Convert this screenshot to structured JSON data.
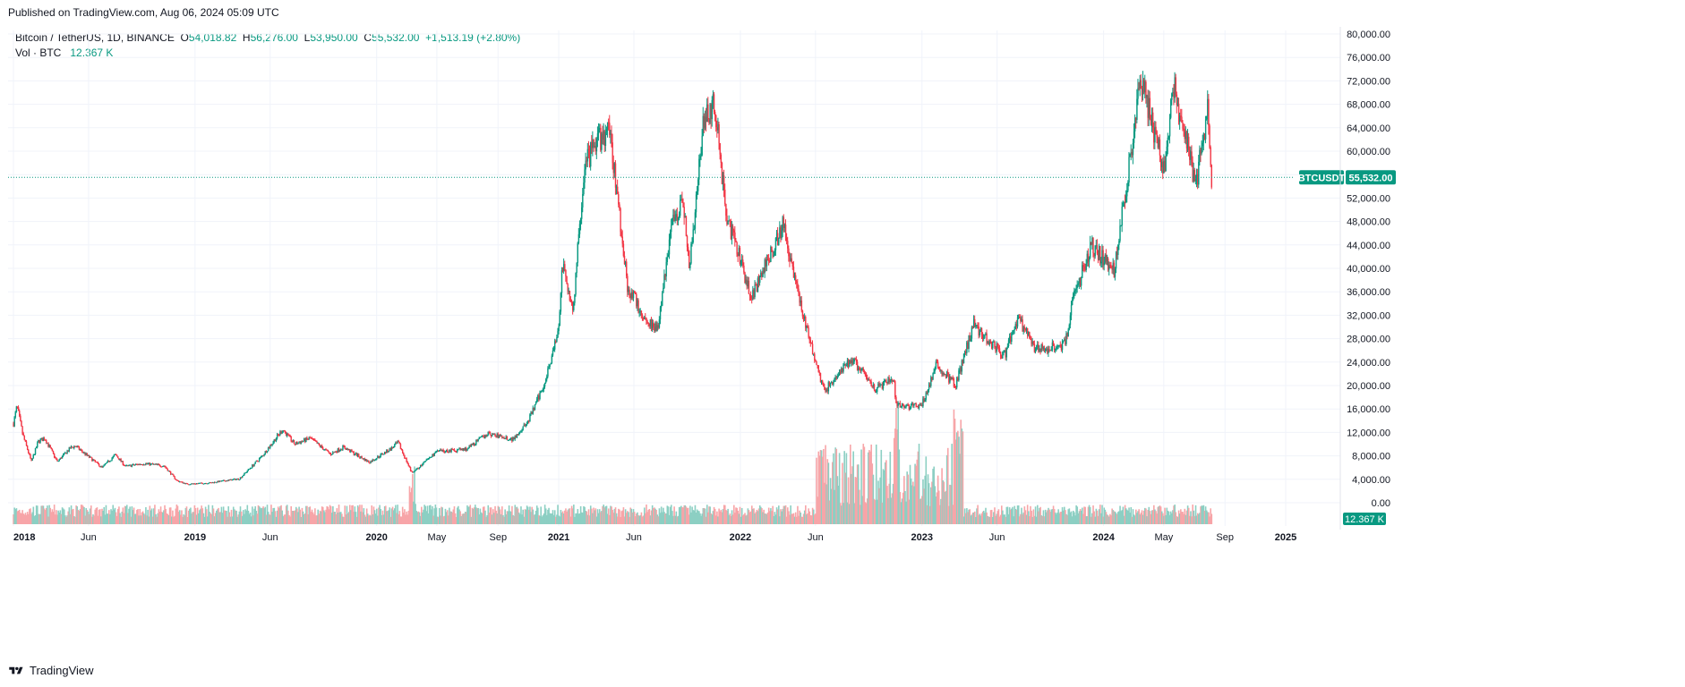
{
  "published": "Published on TradingView.com, Aug 06, 2024 05:09 UTC",
  "legend": {
    "symbol": "Bitcoin / TetherUS, 1D, BINANCE",
    "o_label": "O",
    "o": "54,018.82",
    "h_label": "H",
    "h": "56,276.00",
    "l_label": "L",
    "l": "53,950.00",
    "c_label": "C",
    "c": "55,532.00",
    "change": "+1,513.19 (+2.80%)",
    "vol_label": "Vol · BTC",
    "vol": "12.367 K"
  },
  "price_badge": {
    "symbol": "BTCUSDT",
    "price": "55,532.00"
  },
  "volume_badge": "12.367 K",
  "footer": {
    "brand": "TradingView"
  },
  "colors": {
    "up": "#089981",
    "down": "#f23645",
    "grid": "#f0f3fa",
    "text": "#131722",
    "badge": "#089981",
    "vol_up": "#8ccfc3",
    "vol_down": "#f7a5a8"
  },
  "chart_data": {
    "type": "candlestick",
    "symbol": "BTCUSDT",
    "ylim": [
      0,
      80000
    ],
    "y_ticks": [
      "80,000.00",
      "76,000.00",
      "72,000.00",
      "68,000.00",
      "64,000.00",
      "60,000.00",
      "56,000.00",
      "52,000.00",
      "48,000.00",
      "44,000.00",
      "40,000.00",
      "36,000.00",
      "32,000.00",
      "28,000.00",
      "24,000.00",
      "20,000.00",
      "16,000.00",
      "12,000.00",
      "8,000.00",
      "4,000.00",
      "0.00"
    ],
    "x_ticks": [
      "2018",
      "Jun",
      "2019",
      "Jun",
      "2020",
      "May",
      "Sep",
      "2021",
      "Jun",
      "2022",
      "Jun",
      "2023",
      "Jun",
      "2024",
      "May",
      "Sep",
      "2025"
    ],
    "last_price": 55532,
    "close_path": [
      [
        "2018-01-01",
        13500
      ],
      [
        "2018-01-08",
        16500
      ],
      [
        "2018-01-20",
        11500
      ],
      [
        "2018-02-06",
        7000
      ],
      [
        "2018-02-20",
        10500
      ],
      [
        "2018-03-05",
        11000
      ],
      [
        "2018-03-30",
        7000
      ],
      [
        "2018-04-25",
        9300
      ],
      [
        "2018-05-05",
        9700
      ],
      [
        "2018-06-28",
        6000
      ],
      [
        "2018-07-25",
        8200
      ],
      [
        "2018-08-14",
        6200
      ],
      [
        "2018-09-20",
        6700
      ],
      [
        "2018-10-31",
        6300
      ],
      [
        "2018-11-25",
        3800
      ],
      [
        "2018-12-15",
        3200
      ],
      [
        "2019-01-31",
        3400
      ],
      [
        "2019-03-31",
        4100
      ],
      [
        "2019-05-15",
        7900
      ],
      [
        "2019-06-26",
        12500
      ],
      [
        "2019-07-20",
        10000
      ],
      [
        "2019-08-20",
        11000
      ],
      [
        "2019-09-30",
        8300
      ],
      [
        "2019-10-26",
        9500
      ],
      [
        "2019-12-17",
        6900
      ],
      [
        "2020-01-31",
        9300
      ],
      [
        "2020-02-13",
        10300
      ],
      [
        "2020-03-12",
        5000
      ],
      [
        "2020-04-30",
        8700
      ],
      [
        "2020-06-30",
        9150
      ],
      [
        "2020-08-10",
        11800
      ],
      [
        "2020-09-30",
        10800
      ],
      [
        "2020-10-31",
        13800
      ],
      [
        "2020-11-30",
        19700
      ],
      [
        "2020-12-31",
        29000
      ],
      [
        "2021-01-08",
        40500
      ],
      [
        "2021-01-30",
        33000
      ],
      [
        "2021-02-21",
        57000
      ],
      [
        "2021-03-13",
        61000
      ],
      [
        "2021-04-14",
        63500
      ],
      [
        "2021-05-19",
        37000
      ],
      [
        "2021-06-22",
        31500
      ],
      [
        "2021-07-20",
        29800
      ],
      [
        "2021-08-14",
        47000
      ],
      [
        "2021-09-06",
        52000
      ],
      [
        "2021-09-21",
        40500
      ],
      [
        "2021-10-20",
        66000
      ],
      [
        "2021-11-10",
        68000
      ],
      [
        "2021-12-04",
        49000
      ],
      [
        "2022-01-24",
        35000
      ],
      [
        "2022-03-28",
        47500
      ],
      [
        "2022-05-10",
        31000
      ],
      [
        "2022-06-18",
        19000
      ],
      [
        "2022-08-13",
        24500
      ],
      [
        "2022-09-30",
        19400
      ],
      [
        "2022-11-05",
        21300
      ],
      [
        "2022-11-09",
        16500
      ],
      [
        "2022-12-31",
        16500
      ],
      [
        "2023-01-30",
        23500
      ],
      [
        "2023-03-10",
        20000
      ],
      [
        "2023-04-14",
        30500
      ],
      [
        "2023-06-15",
        25000
      ],
      [
        "2023-07-13",
        31500
      ],
      [
        "2023-08-17",
        26000
      ],
      [
        "2023-10-15",
        27000
      ],
      [
        "2023-10-31",
        34500
      ],
      [
        "2023-12-08",
        44000
      ],
      [
        "2024-01-23",
        39500
      ],
      [
        "2024-02-28",
        62000
      ],
      [
        "2024-03-14",
        73000
      ],
      [
        "2024-04-17",
        61500
      ],
      [
        "2024-05-01",
        57000
      ],
      [
        "2024-05-21",
        71000
      ],
      [
        "2024-07-05",
        54000
      ],
      [
        "2024-07-29",
        68500
      ],
      [
        "2024-08-05",
        53950
      ],
      [
        "2024-08-06",
        55532
      ]
    ],
    "volume_note": "Vol · BTC histogram, last 12.367 K"
  }
}
